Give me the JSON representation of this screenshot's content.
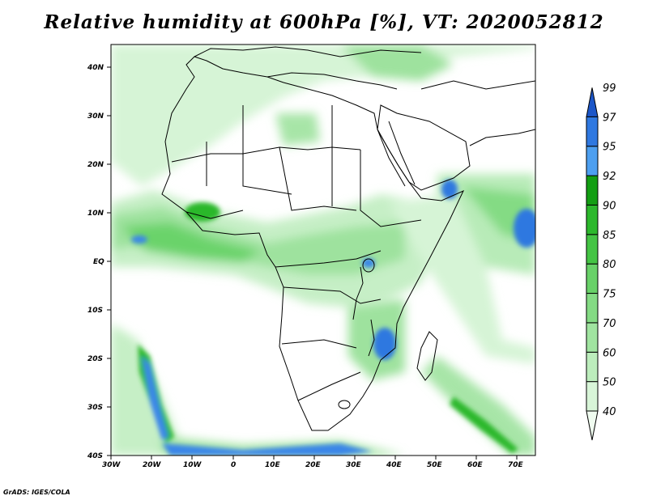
{
  "title": "Relative humidity at 600hPa [%], VT: 2020052812",
  "credit": "GrADS: IGES/COLA",
  "lon_ticks": [
    "30W",
    "20W",
    "10W",
    "0",
    "10E",
    "20E",
    "30E",
    "40E",
    "50E",
    "60E",
    "70E"
  ],
  "lat_ticks": [
    "40N",
    "30N",
    "20N",
    "10N",
    "EQ",
    "10S",
    "20S",
    "30S",
    "40S"
  ],
  "colorbar": {
    "levels": [
      "40",
      "50",
      "60",
      "70",
      "75",
      "80",
      "85",
      "90",
      "92",
      "95",
      "97",
      "99"
    ],
    "colors": [
      "#f0fcf0",
      "#d8f5d8",
      "#bcedbc",
      "#a0e4a0",
      "#84db84",
      "#68d168",
      "#44c444",
      "#2cb82c",
      "#139e13",
      "#4d9ff0",
      "#2f78e0",
      "#1c56c8"
    ]
  }
}
